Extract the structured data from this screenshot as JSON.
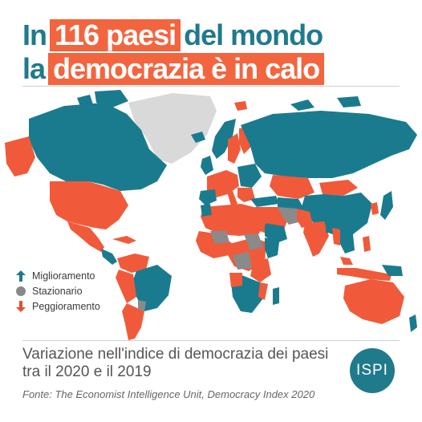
{
  "title": {
    "line1_plain": "In",
    "line1_highlight": "116 paesi",
    "line1_rest": "del mondo",
    "line2_plain": "la",
    "line2_highlight": "democrazia è in calo"
  },
  "legend": [
    {
      "label": "Miglioramento",
      "icon": "arrow-up-icon",
      "color": "#1f7a8c"
    },
    {
      "label": "Stazionario",
      "icon": "circle-icon",
      "color": "#888888"
    },
    {
      "label": "Peggioramento",
      "icon": "arrow-down-icon",
      "color": "#e3512e"
    }
  ],
  "colors": {
    "improvement": "#1a7b8e",
    "stationary": "#8a8a8a",
    "worsening": "#f05a3a",
    "no_data": "#d9d9d9",
    "highlight": "#f2653f",
    "brand": "#1f7a8c"
  },
  "subtitle": "Variazione nell'indice di democrazia dei paesi tra il 2020 e il 2019",
  "source": "Fonte: The Economist Intelligence Unit, Democracy Index 2020",
  "logo": "ISPI"
}
